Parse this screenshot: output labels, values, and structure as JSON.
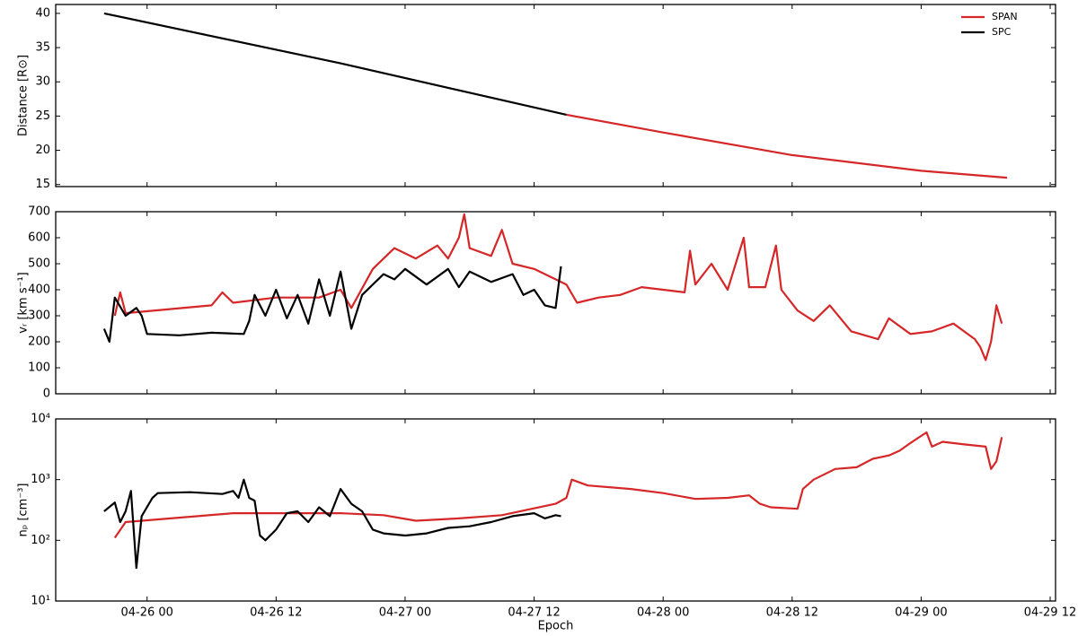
{
  "chart_data": [
    {
      "type": "line",
      "ylabel": "Distance [R⊙]",
      "ylim": [
        14.7,
        41.3
      ],
      "yticks": [
        15,
        20,
        25,
        30,
        35,
        40
      ],
      "xlim": [
        "04-25 15:30",
        "04-29 12:30"
      ],
      "legend": "upper right",
      "series": [
        {
          "name": "SPAN",
          "color": "#d62728",
          "x": [
            "04-27 15:00",
            "04-28 00:00",
            "04-28 12:00",
            "04-29 00:00",
            "04-29 08:00"
          ],
          "values": [
            25.2,
            22.6,
            19.3,
            17.0,
            16.0
          ]
        },
        {
          "name": "SPC",
          "color": "#000000",
          "x": [
            "04-25 20:00",
            "04-26 18:00",
            "04-27 15:00"
          ],
          "values": [
            40.0,
            32.7,
            25.2
          ]
        }
      ]
    },
    {
      "type": "line",
      "ylabel": "vᵣ [km s⁻¹]",
      "ylim": [
        0,
        700
      ],
      "yticks": [
        0,
        100,
        200,
        300,
        400,
        500,
        600,
        700
      ],
      "xlim": [
        "04-25 15:30",
        "04-29 12:30"
      ],
      "series": [
        {
          "name": "SPAN",
          "color": "#d62728",
          "x": [
            "04-25 21:00",
            "04-25 21:30",
            "04-25 22:00",
            "04-26 06:00",
            "04-26 07:00",
            "04-26 08:00",
            "04-26 12:00",
            "04-26 16:00",
            "04-26 18:00",
            "04-26 19:00",
            "04-26 21:00",
            "04-26 23:00",
            "04-27 01:00",
            "04-27 03:00",
            "04-27 04:00",
            "04-27 05:00",
            "04-27 05:30",
            "04-27 06:00",
            "04-27 08:00",
            "04-27 09:00",
            "04-27 10:00",
            "04-27 12:00",
            "04-27 15:00",
            "04-27 16:00",
            "04-27 18:00",
            "04-27 20:00",
            "04-27 22:00",
            "04-28 00:00",
            "04-28 02:00",
            "04-28 02:30",
            "04-28 03:00",
            "04-28 04:30",
            "04-28 06:00",
            "04-28 07:30",
            "04-28 08:00",
            "04-28 09:30",
            "04-28 10:30",
            "04-28 11:00",
            "04-28 12:30",
            "04-28 14:00",
            "04-28 15:30",
            "04-28 17:30",
            "04-28 20:00",
            "04-28 21:00",
            "04-28 23:00",
            "04-29 01:00",
            "04-29 03:00",
            "04-29 05:00",
            "04-29 05:30",
            "04-29 06:00",
            "04-29 06:30",
            "04-29 07:00",
            "04-29 07:30"
          ],
          "values": [
            300,
            390,
            310,
            340,
            390,
            350,
            370,
            370,
            400,
            330,
            480,
            560,
            520,
            570,
            520,
            600,
            690,
            560,
            530,
            630,
            500,
            480,
            420,
            350,
            370,
            380,
            410,
            400,
            390,
            550,
            420,
            500,
            400,
            600,
            410,
            410,
            570,
            400,
            320,
            280,
            340,
            240,
            210,
            290,
            230,
            240,
            270,
            210,
            180,
            130,
            200,
            340,
            270
          ]
        },
        {
          "name": "SPC",
          "color": "#000000",
          "x": [
            "04-25 20:00",
            "04-25 20:30",
            "04-25 21:00",
            "04-25 22:00",
            "04-25 23:00",
            "04-25 23:30",
            "04-26 00:00",
            "04-26 03:00",
            "04-26 06:00",
            "04-26 09:00",
            "04-26 09:30",
            "04-26 10:00",
            "04-26 11:00",
            "04-26 12:00",
            "04-26 13:00",
            "04-26 14:00",
            "04-26 15:00",
            "04-26 16:00",
            "04-26 17:00",
            "04-26 18:00",
            "04-26 19:00",
            "04-26 20:00",
            "04-26 21:00",
            "04-26 22:00",
            "04-26 23:00",
            "04-27 00:00",
            "04-27 02:00",
            "04-27 04:00",
            "04-27 05:00",
            "04-27 06:00",
            "04-27 08:00",
            "04-27 10:00",
            "04-27 11:00",
            "04-27 12:00",
            "04-27 13:00",
            "04-27 14:00",
            "04-27 14:30"
          ],
          "values": [
            250,
            200,
            370,
            300,
            330,
            300,
            230,
            225,
            235,
            230,
            280,
            380,
            300,
            400,
            290,
            380,
            270,
            440,
            300,
            470,
            250,
            380,
            420,
            460,
            440,
            480,
            420,
            480,
            410,
            470,
            430,
            460,
            380,
            400,
            340,
            330,
            490
          ]
        }
      ]
    },
    {
      "type": "line",
      "ylabel": "nₚ [cm⁻³]",
      "xlabel": "Epoch",
      "log": true,
      "ylim": [
        10,
        10000
      ],
      "yticks": [
        {
          "value": 10,
          "label": "10¹"
        },
        {
          "value": 100,
          "label": "10²"
        },
        {
          "value": 1000,
          "label": "10³"
        },
        {
          "value": 10000,
          "label": "10⁴"
        }
      ],
      "xlim": [
        "04-25 15:30",
        "04-29 12:30"
      ],
      "xticks": [
        "04-26 00",
        "04-26 12",
        "04-27 00",
        "04-27 12",
        "04-28 00",
        "04-28 12",
        "04-29 00",
        "04-29 12"
      ],
      "series": [
        {
          "name": "SPAN",
          "color": "#d62728",
          "x": [
            "04-25 21:00",
            "04-25 22:00",
            "04-26 08:00",
            "04-26 12:00",
            "04-26 18:00",
            "04-26 22:00",
            "04-27 01:00",
            "04-27 05:00",
            "04-27 09:00",
            "04-27 14:00",
            "04-27 15:00",
            "04-27 15:30",
            "04-27 17:00",
            "04-27 21:00",
            "04-28 00:00",
            "04-28 03:00",
            "04-28 06:00",
            "04-28 08:00",
            "04-28 09:00",
            "04-28 10:00",
            "04-28 12:30",
            "04-28 13:00",
            "04-28 14:00",
            "04-28 16:00",
            "04-28 18:00",
            "04-28 19:30",
            "04-28 21:00",
            "04-28 22:00",
            "04-28 23:00",
            "04-29 00:30",
            "04-29 01:00",
            "04-29 02:00",
            "04-29 04:00",
            "04-29 06:00",
            "04-29 06:30",
            "04-29 07:00",
            "04-29 07:30"
          ],
          "values": [
            110,
            200,
            280,
            280,
            280,
            260,
            210,
            230,
            260,
            400,
            500,
            1000,
            800,
            700,
            600,
            480,
            500,
            550,
            400,
            350,
            330,
            700,
            1000,
            1500,
            1600,
            2200,
            2500,
            3000,
            4000,
            6000,
            3500,
            4200,
            3800,
            3500,
            1500,
            2000,
            5000
          ]
        },
        {
          "name": "SPC",
          "color": "#000000",
          "x": [
            "04-25 20:00",
            "04-25 21:00",
            "04-25 21:30",
            "04-25 22:00",
            "04-25 22:30",
            "04-25 23:00",
            "04-25 23:30",
            "04-26 00:30",
            "04-26 01:00",
            "04-26 04:00",
            "04-26 07:00",
            "04-26 08:00",
            "04-26 08:30",
            "04-26 09:00",
            "04-26 09:30",
            "04-26 10:00",
            "04-26 10:30",
            "04-26 11:00",
            "04-26 12:00",
            "04-26 13:00",
            "04-26 14:00",
            "04-26 15:00",
            "04-26 16:00",
            "04-26 17:00",
            "04-26 18:00",
            "04-26 19:00",
            "04-26 20:00",
            "04-26 21:00",
            "04-26 22:00",
            "04-27 00:00",
            "04-27 02:00",
            "04-27 04:00",
            "04-27 06:00",
            "04-27 08:00",
            "04-27 10:00",
            "04-27 12:00",
            "04-27 13:00",
            "04-27 14:00",
            "04-27 14:30"
          ],
          "values": [
            300,
            420,
            200,
            300,
            650,
            35,
            250,
            500,
            600,
            620,
            580,
            650,
            500,
            1000,
            500,
            450,
            120,
            100,
            150,
            280,
            300,
            200,
            350,
            250,
            700,
            400,
            300,
            150,
            130,
            120,
            130,
            160,
            170,
            200,
            250,
            280,
            230,
            260,
            250
          ]
        }
      ]
    }
  ]
}
